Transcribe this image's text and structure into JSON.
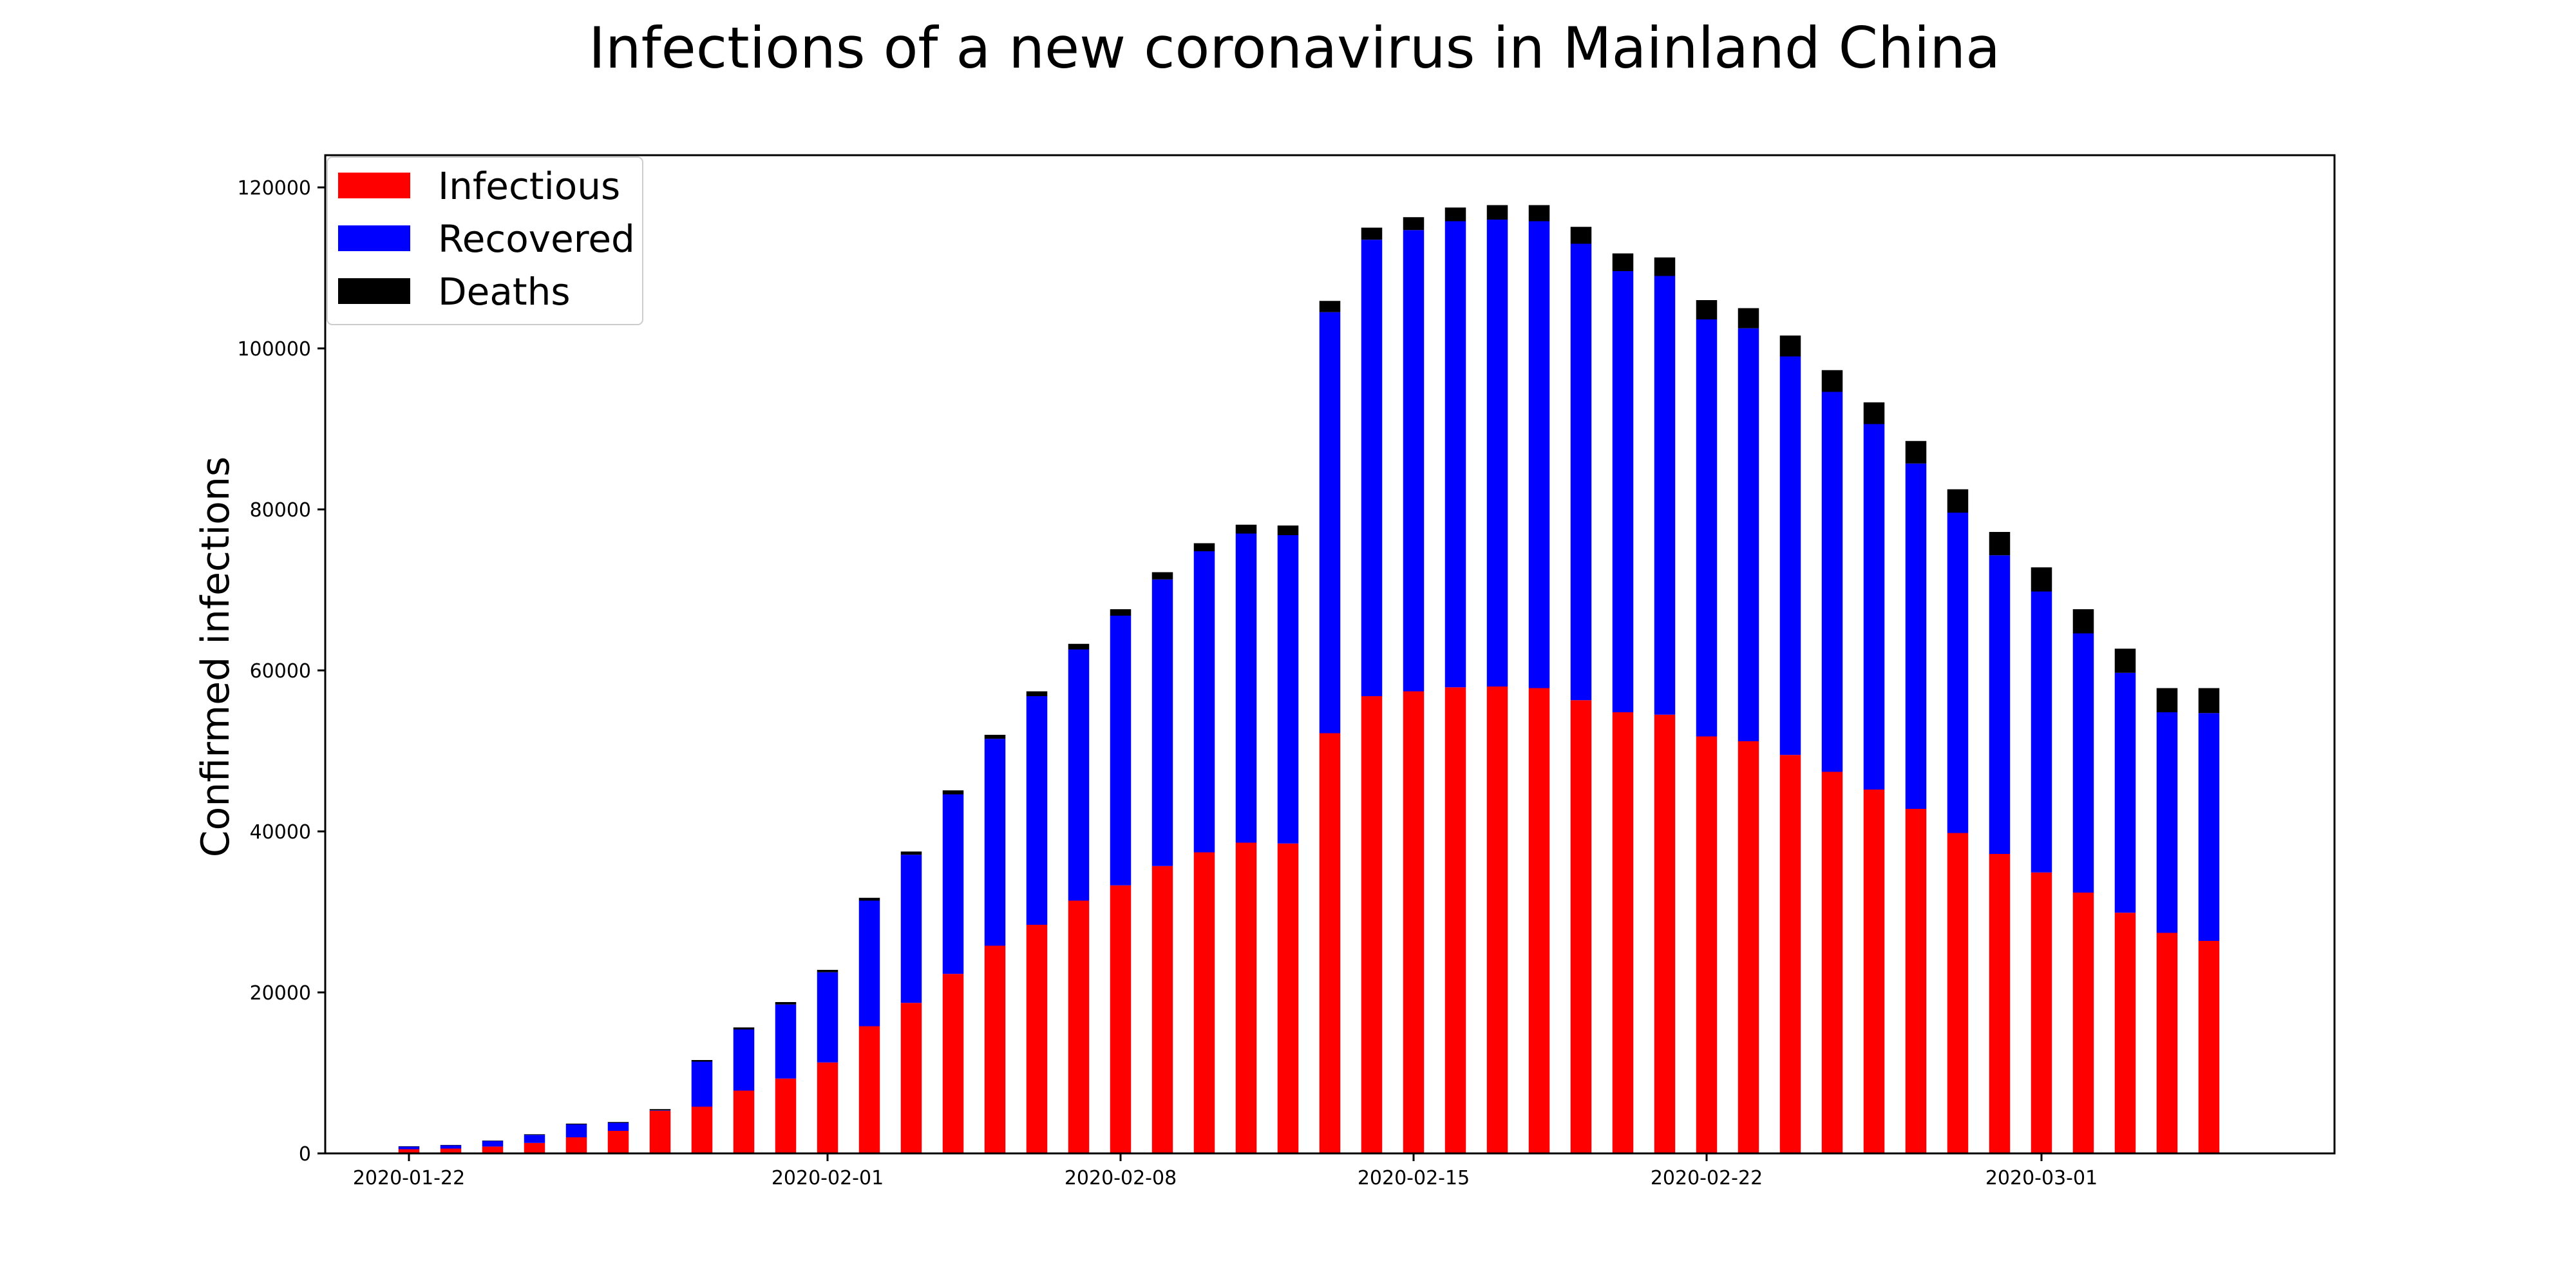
{
  "chart_data": {
    "type": "bar",
    "stacked": true,
    "title": "Infections of a new coronavirus in Mainland China",
    "xlabel": "",
    "ylabel": "Confirmed infections",
    "ylim": [
      0,
      124000
    ],
    "xlim": [
      "2020-01-20",
      "2020-03-08"
    ],
    "yticks": [
      0,
      20000,
      40000,
      60000,
      80000,
      100000,
      120000
    ],
    "ytick_labels": [
      "0",
      "20000",
      "40000",
      "60000",
      "80000",
      "100000",
      "120000"
    ],
    "xticks": [
      "2020-01-22",
      "2020-02-01",
      "2020-02-08",
      "2020-02-15",
      "2020-02-22",
      "2020-03-01"
    ],
    "legend_position": "top-left",
    "grid": false,
    "x": [
      "2020-01-22",
      "2020-01-23",
      "2020-01-24",
      "2020-01-25",
      "2020-01-26",
      "2020-01-27",
      "2020-01-28",
      "2020-01-29",
      "2020-01-30",
      "2020-01-31",
      "2020-02-01",
      "2020-02-02",
      "2020-02-03",
      "2020-02-04",
      "2020-02-05",
      "2020-02-06",
      "2020-02-07",
      "2020-02-08",
      "2020-02-09",
      "2020-02-10",
      "2020-02-11",
      "2020-02-12",
      "2020-02-13",
      "2020-02-14",
      "2020-02-15",
      "2020-02-16",
      "2020-02-17",
      "2020-02-18",
      "2020-02-19",
      "2020-02-20",
      "2020-02-21",
      "2020-02-22",
      "2020-02-23",
      "2020-02-24",
      "2020-02-25",
      "2020-02-26",
      "2020-02-27",
      "2020-02-28",
      "2020-02-29",
      "2020-03-01",
      "2020-03-02",
      "2020-03-03",
      "2020-03-04",
      "2020-03-05"
    ],
    "series": [
      {
        "name": "Infectious",
        "color": "#ff0000",
        "values": [
          520,
          600,
          850,
          1300,
          2000,
          2800,
          5300,
          5800,
          7800,
          9300,
          11300,
          15800,
          18700,
          22300,
          25800,
          28400,
          31400,
          33300,
          35700,
          37400,
          38600,
          38500,
          52200,
          56800,
          57400,
          57900,
          58000,
          57800,
          56300,
          54800,
          54500,
          51800,
          51200,
          49500,
          47400,
          45200,
          42800,
          39800,
          37200,
          34900,
          32400,
          29900,
          27400,
          26400
        ]
      },
      {
        "name": "Recovered",
        "color": "#0000ff",
        "values": [
          320,
          400,
          700,
          1000,
          1600,
          1000,
          50,
          5600,
          7600,
          9200,
          11200,
          15600,
          18400,
          22300,
          25700,
          28400,
          31200,
          33500,
          35600,
          37400,
          38400,
          38300,
          52300,
          56700,
          57300,
          57900,
          58000,
          58000,
          56700,
          54800,
          54500,
          51800,
          51300,
          49500,
          47200,
          45400,
          42900,
          39800,
          37100,
          34900,
          32200,
          29800,
          27400,
          28300
        ]
      },
      {
        "name": "Deaths",
        "color": "#000000",
        "values": [
          50,
          50,
          50,
          80,
          100,
          100,
          150,
          200,
          250,
          300,
          300,
          350,
          400,
          500,
          500,
          600,
          700,
          800,
          900,
          1000,
          1100,
          1200,
          1400,
          1500,
          1600,
          1700,
          1800,
          2000,
          2100,
          2200,
          2300,
          2400,
          2500,
          2600,
          2700,
          2700,
          2800,
          2900,
          2900,
          3000,
          3000,
          3000,
          3000,
          3100
        ]
      }
    ]
  }
}
